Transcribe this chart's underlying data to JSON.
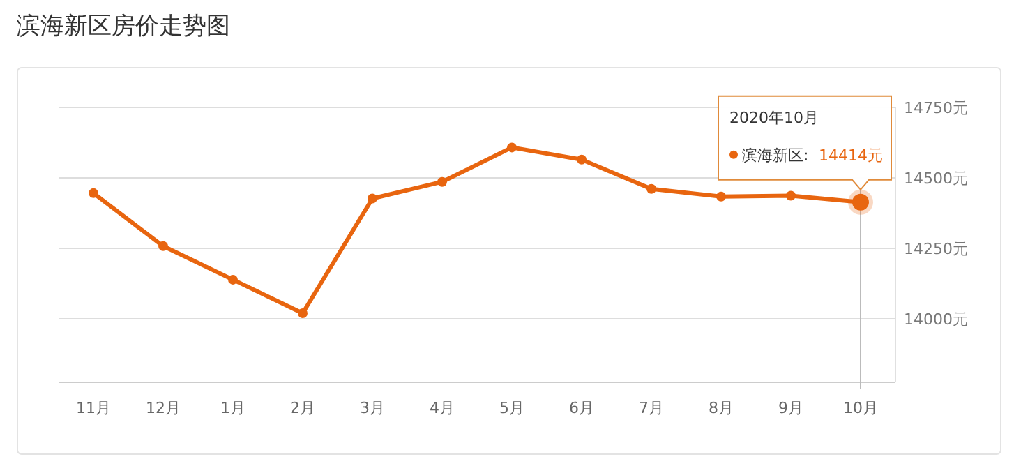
{
  "chart_data": {
    "type": "line",
    "title": "滨海新区房价走势图",
    "categories": [
      "11月",
      "12月",
      "1月",
      "2月",
      "3月",
      "4月",
      "5月",
      "6月",
      "7月",
      "8月",
      "9月",
      "10月"
    ],
    "series": [
      {
        "name": "滨海新区:",
        "color": "#e8650f",
        "values": [
          14446,
          14258,
          14139,
          14020,
          14427,
          14486,
          14608,
          14565,
          14461,
          14434,
          14437,
          14414
        ],
        "value_labels": [
          null,
          null,
          null,
          null,
          null,
          null,
          null,
          null,
          null,
          null,
          null,
          "14414元"
        ]
      }
    ],
    "ylim": [
      13775,
      14750
    ],
    "yticks": [
      {
        "value": 14000,
        "label": "14000元"
      },
      {
        "value": 14250,
        "label": "14250元"
      },
      {
        "value": 14500,
        "label": "14500元"
      },
      {
        "value": 14750,
        "label": "14750元"
      }
    ],
    "grid": "y",
    "marker": "circle",
    "line_style": "solid",
    "ref_lines": [
      {
        "axis": "x",
        "value": "10月",
        "color": "#bbbbbb"
      }
    ],
    "annotations": [
      "2020年10月"
    ]
  }
}
